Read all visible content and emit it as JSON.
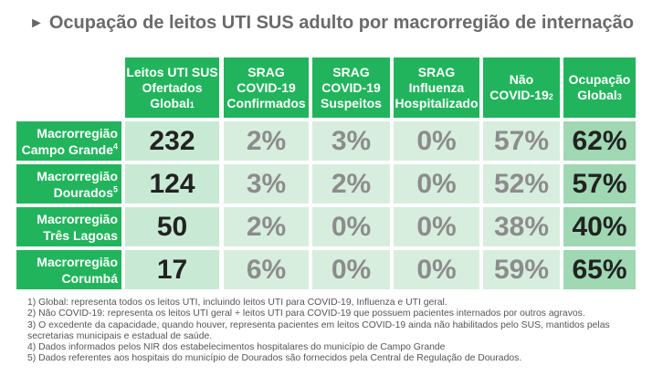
{
  "title": "Ocupação de leitos UTI SUS adulto por macrorregião de internação",
  "headers": [
    {
      "lines": [
        "Leitos UTI SUS",
        "Ofertados",
        "Global"
      ],
      "sup": "1"
    },
    {
      "lines": [
        "SRAG",
        "COVID-19",
        "Confirmados"
      ],
      "sup": ""
    },
    {
      "lines": [
        "SRAG",
        "COVID-19",
        "Suspeitos"
      ],
      "sup": ""
    },
    {
      "lines": [
        "SRAG",
        "Influenza",
        "Hospitalizado"
      ],
      "sup": ""
    },
    {
      "lines": [
        "Não",
        "COVID-19"
      ],
      "sup": "2"
    },
    {
      "lines": [
        "Ocupação",
        "Global"
      ],
      "sup": "3"
    }
  ],
  "rows": [
    {
      "label": [
        "Macrorregião",
        "Campo Grande"
      ],
      "sup": "4",
      "values": [
        "232",
        "2%",
        "3%",
        "0%",
        "57%",
        "62%"
      ]
    },
    {
      "label": [
        "Macrorregião",
        "Dourados"
      ],
      "sup": "5",
      "values": [
        "124",
        "3%",
        "2%",
        "0%",
        "52%",
        "57%"
      ]
    },
    {
      "label": [
        "Macrorregião",
        "Três Lagoas"
      ],
      "sup": "",
      "values": [
        "50",
        "2%",
        "0%",
        "0%",
        "38%",
        "40%"
      ]
    },
    {
      "label": [
        "Macrorregião",
        "Corumbá"
      ],
      "sup": "",
      "values": [
        "17",
        "6%",
        "0%",
        "0%",
        "59%",
        "65%"
      ]
    }
  ],
  "colors": {
    "header_green": "#22b45c",
    "cell_light": "#d7eede",
    "cell_dark": "#9fd8b3"
  },
  "notes": [
    "1) Global: representa todos os leitos UTI, incluindo leitos UTI para COVID-19, Influenza e UTI geral.",
    "2) Não COVID-19: representa os leitos UTI geral + leitos UTI para COVID-19 que possuem pacientes internados por outros agravos.",
    "3) O excedente da capacidade, quando houver, representa pacientes em leitos COVID-19 ainda não habilitados pelo SUS, mantidos pelas secretarias municipais e estadual de saúde.",
    "4) Dados informados pelos NIR dos estabelecimentos hospitalares do município de Campo Grande",
    "5) Dados referentes aos hospitais do município de Dourados são fornecidos pela Central de Regulação de Dourados."
  ]
}
